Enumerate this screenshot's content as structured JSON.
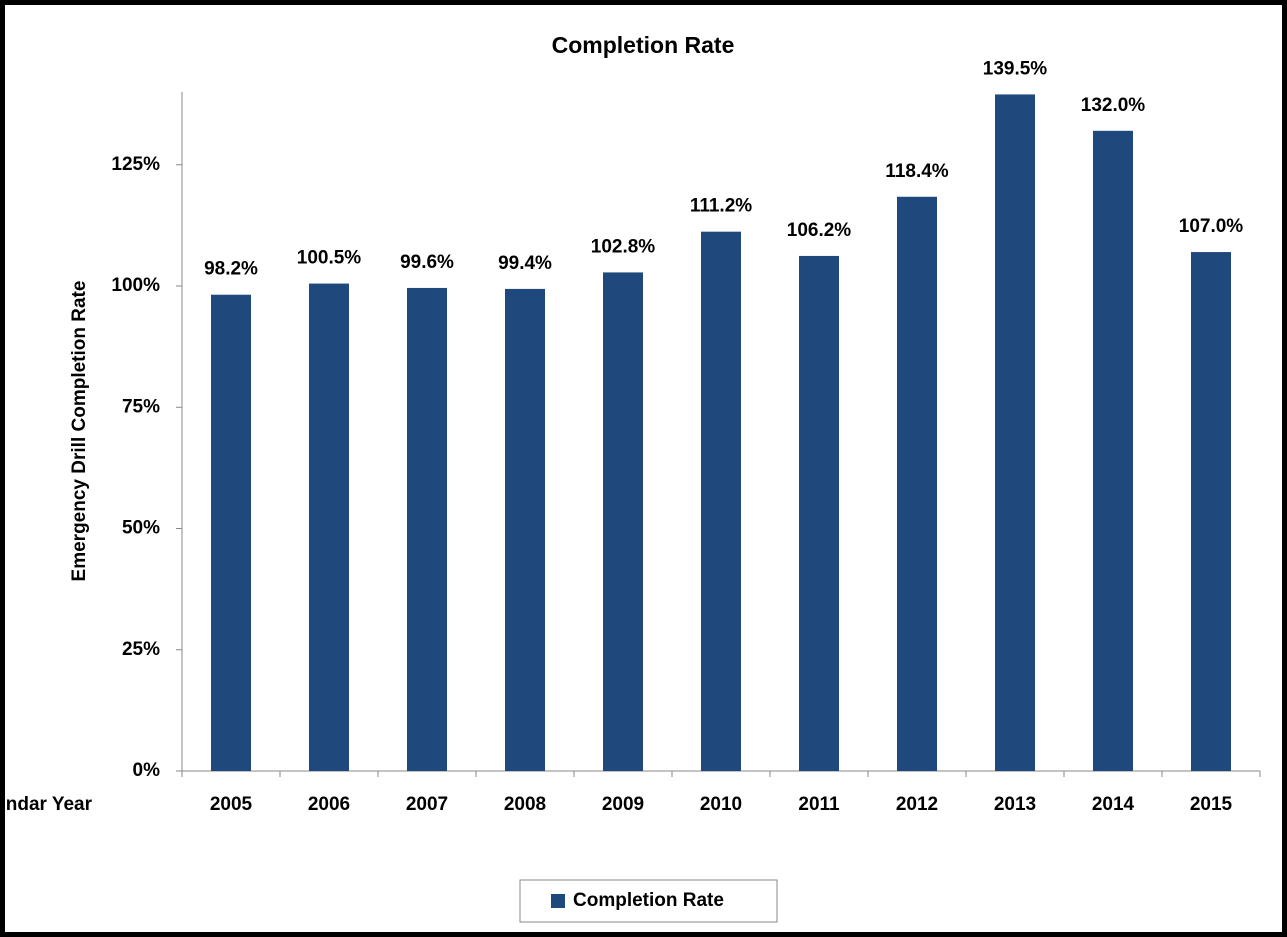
{
  "chart_data": {
    "type": "bar",
    "title": "Completion Rate",
    "x_label": "Calendar Year",
    "y_label": "Emergency Drill Completion Rate",
    "categories": [
      "2005",
      "2006",
      "2007",
      "2008",
      "2009",
      "2010",
      "2011",
      "2012",
      "2013",
      "2014",
      "2015"
    ],
    "series": [
      {
        "name": "Completion Rate",
        "color": "#1f497d",
        "values": [
          98.2,
          100.5,
          99.6,
          99.4,
          102.8,
          111.2,
          106.2,
          118.4,
          139.5,
          132.0,
          107.0
        ],
        "value_labels": [
          "98.2%",
          "100.5%",
          "99.6%",
          "99.4%",
          "102.8%",
          "111.2%",
          "106.2%",
          "118.4%",
          "139.5%",
          "132.0%",
          "107.0%"
        ]
      }
    ],
    "ylim": [
      0,
      140
    ],
    "yticks": [
      {
        "value": 0,
        "label": "0%"
      },
      {
        "value": 25,
        "label": "25%"
      },
      {
        "value": 50,
        "label": "50%"
      },
      {
        "value": 75,
        "label": "75%"
      },
      {
        "value": 100,
        "label": "100%"
      },
      {
        "value": 125,
        "label": "125%"
      }
    ],
    "grid": false,
    "legend": "bottom"
  }
}
